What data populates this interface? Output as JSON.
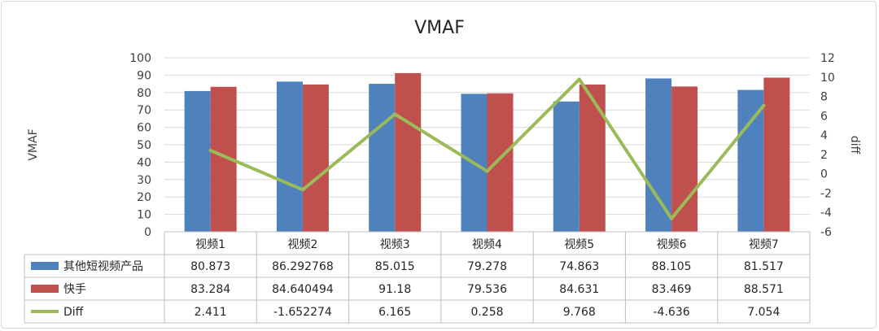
{
  "chart_data": {
    "type": "bar",
    "title": "VMAF",
    "ylabel": "VMAF",
    "y2label": "diff",
    "ylim": [
      0,
      100
    ],
    "y2lim": [
      -6,
      12
    ],
    "yticks": [
      "0",
      "10",
      "20",
      "30",
      "40",
      "50",
      "60",
      "70",
      "80",
      "90",
      "100"
    ],
    "y2ticks": [
      "-6",
      "-4",
      "-2",
      "0",
      "2",
      "4",
      "6",
      "8",
      "10",
      "12"
    ],
    "categories": [
      "视频1",
      "视频2",
      "视频3",
      "视频4",
      "视频5",
      "视频6",
      "视频7"
    ],
    "series": [
      {
        "name": "其他短视频产品",
        "kind": "bar",
        "axis": "left",
        "color": "#4f81bd",
        "values": [
          80.873,
          86.292768,
          85.015,
          79.278,
          74.863,
          88.105,
          81.517
        ],
        "labels": [
          "80.873",
          "86.292768",
          "85.015",
          "79.278",
          "74.863",
          "88.105",
          "81.517"
        ]
      },
      {
        "name": "快手",
        "kind": "bar",
        "axis": "left",
        "color": "#c0504d",
        "values": [
          83.284,
          84.640494,
          91.18,
          79.536,
          84.631,
          83.469,
          88.571
        ],
        "labels": [
          "83.284",
          "84.640494",
          "91.18",
          "79.536",
          "84.631",
          "83.469",
          "88.571"
        ]
      },
      {
        "name": "Diff",
        "kind": "line",
        "axis": "right",
        "color": "#9bbb59",
        "values": [
          2.411,
          -1.652274,
          6.165,
          0.258,
          9.768,
          -4.636,
          7.054
        ],
        "labels": [
          "2.411",
          "-1.652274",
          "6.165",
          "0.258",
          "9.768",
          "-4.636",
          "7.054"
        ]
      }
    ],
    "data_table": true,
    "legend": "in-table"
  }
}
